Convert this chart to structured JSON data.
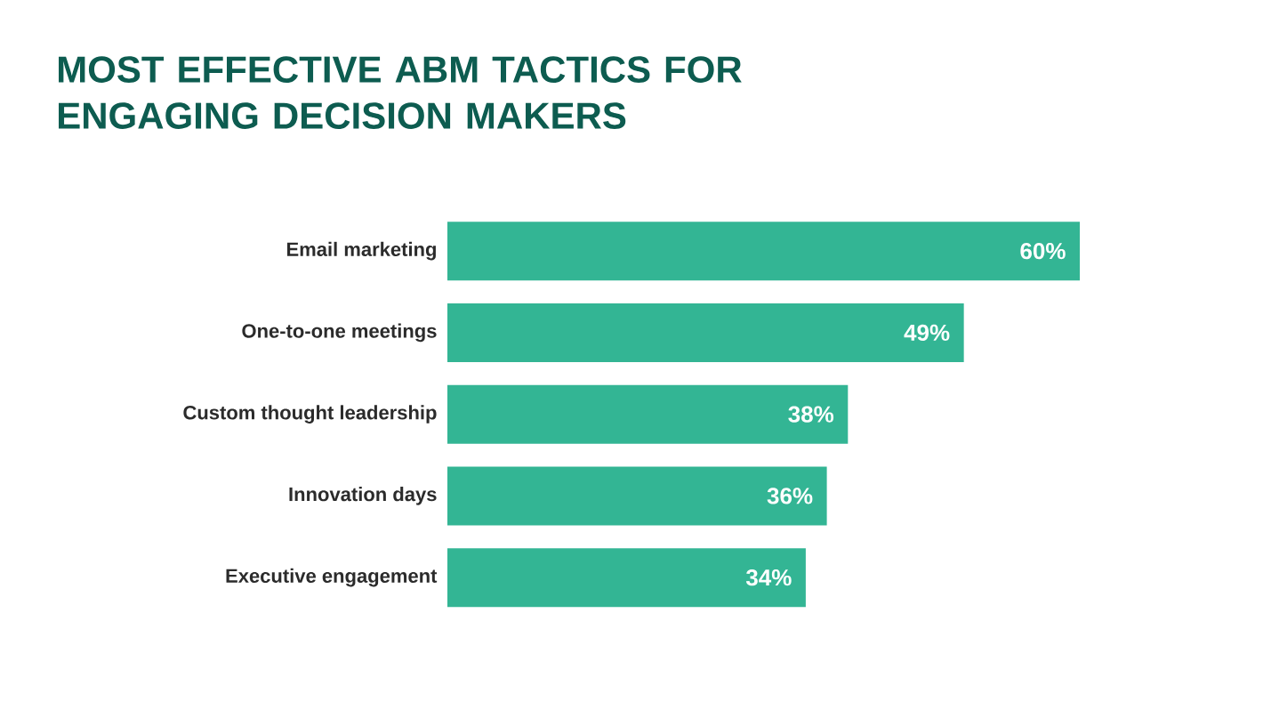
{
  "chart_data": {
    "type": "bar",
    "orientation": "horizontal",
    "title": "MOST EFFECTIVE ABM TACTICS FOR ENGAGING DECISION MAKERS",
    "categories": [
      "Email marketing",
      "One-to-one meetings",
      "Custom thought leadership",
      "Innovation days",
      "Executive engagement"
    ],
    "values": [
      60,
      49,
      38,
      36,
      34
    ],
    "value_labels": [
      "60%",
      "49%",
      "38%",
      "36%",
      "34%"
    ],
    "color": "#33b594"
  }
}
